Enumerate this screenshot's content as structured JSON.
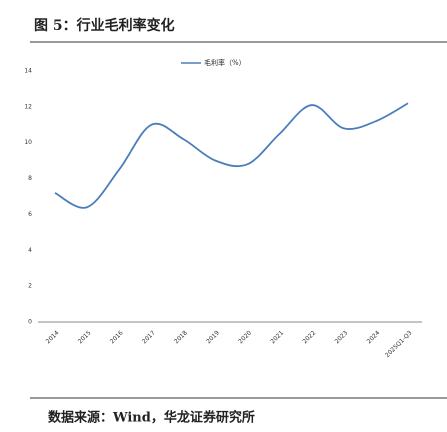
{
  "chart_data": {
    "type": "line",
    "title": "图 5：行业毛利率变化",
    "source": "数据来源：Wind，华龙证券研究所",
    "categories": [
      "2014",
      "2015",
      "2016",
      "2017",
      "2018",
      "2019",
      "2020",
      "2021",
      "2022",
      "2023",
      "2024",
      "2025Q1-Q3"
    ],
    "series": [
      {
        "name": "毛利率（%）",
        "color": "#4a7ebb",
        "values": [
          7.2,
          6.4,
          8.5,
          11.0,
          10.2,
          9.0,
          8.8,
          10.5,
          12.1,
          10.8,
          11.2,
          12.2
        ]
      }
    ],
    "ylim": [
      0,
      14
    ],
    "yticks": [
      0,
      2,
      4,
      6,
      8,
      10,
      12,
      14
    ]
  }
}
